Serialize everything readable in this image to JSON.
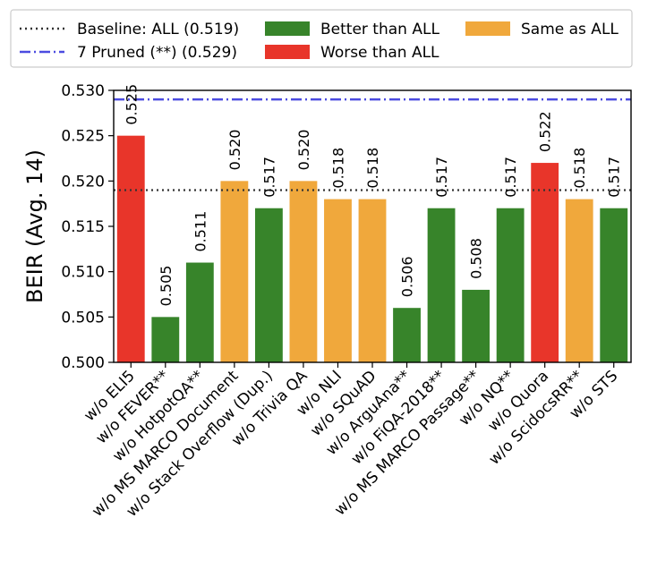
{
  "colors": {
    "better": "#37842a",
    "worse": "#e8352a",
    "same": "#f0a83c",
    "baseline": "#333333",
    "pruned": "#4b4be0"
  },
  "chart_data": {
    "type": "bar",
    "ylabel": "BEIR (Avg. 14)",
    "ylim": [
      0.5,
      0.53
    ],
    "yticks": [
      "0.500",
      "0.505",
      "0.510",
      "0.515",
      "0.520",
      "0.525",
      "0.530"
    ],
    "legend": {
      "placement": "top",
      "entries": [
        {
          "key": "baseline",
          "label": "Baseline: ALL (0.519)",
          "style": "dotted-line"
        },
        {
          "key": "pruned",
          "label": "7 Pruned (**) (0.529)",
          "style": "dashdot-line"
        },
        {
          "key": "better",
          "label": "Better than ALL",
          "style": "patch"
        },
        {
          "key": "worse",
          "label": "Worse than ALL",
          "style": "patch"
        },
        {
          "key": "same",
          "label": "Same as ALL",
          "style": "patch"
        }
      ]
    },
    "reference_lines": [
      {
        "name": "baseline",
        "value": 0.519
      },
      {
        "name": "pruned",
        "value": 0.529
      }
    ],
    "categories": [
      "w/o ELI5",
      "w/o FEVER**",
      "w/o HotpotQA**",
      "w/o MS MARCO Document",
      "w/o Stack Overflow (Dup.)",
      "w/o Trivia QA",
      "w/o NLI",
      "w/o SQuAD",
      "w/o ArguAna**",
      "w/o FiQA-2018**",
      "w/o MS MARCO Passage**",
      "w/o NQ**",
      "w/o Quora",
      "w/o ScidocsRR**",
      "w/o STS"
    ],
    "values": [
      0.525,
      0.505,
      0.511,
      0.52,
      0.517,
      0.52,
      0.518,
      0.518,
      0.506,
      0.517,
      0.508,
      0.517,
      0.522,
      0.518,
      0.517
    ],
    "labels": [
      "0.525",
      "0.505",
      "0.511",
      "0.520",
      "0.517",
      "0.520",
      "0.518",
      "0.518",
      "0.506",
      "0.517",
      "0.508",
      "0.517",
      "0.522",
      "0.518",
      "0.517"
    ],
    "groups": [
      "worse",
      "better",
      "better",
      "same",
      "better",
      "same",
      "same",
      "same",
      "better",
      "better",
      "better",
      "better",
      "worse",
      "same",
      "better"
    ]
  }
}
